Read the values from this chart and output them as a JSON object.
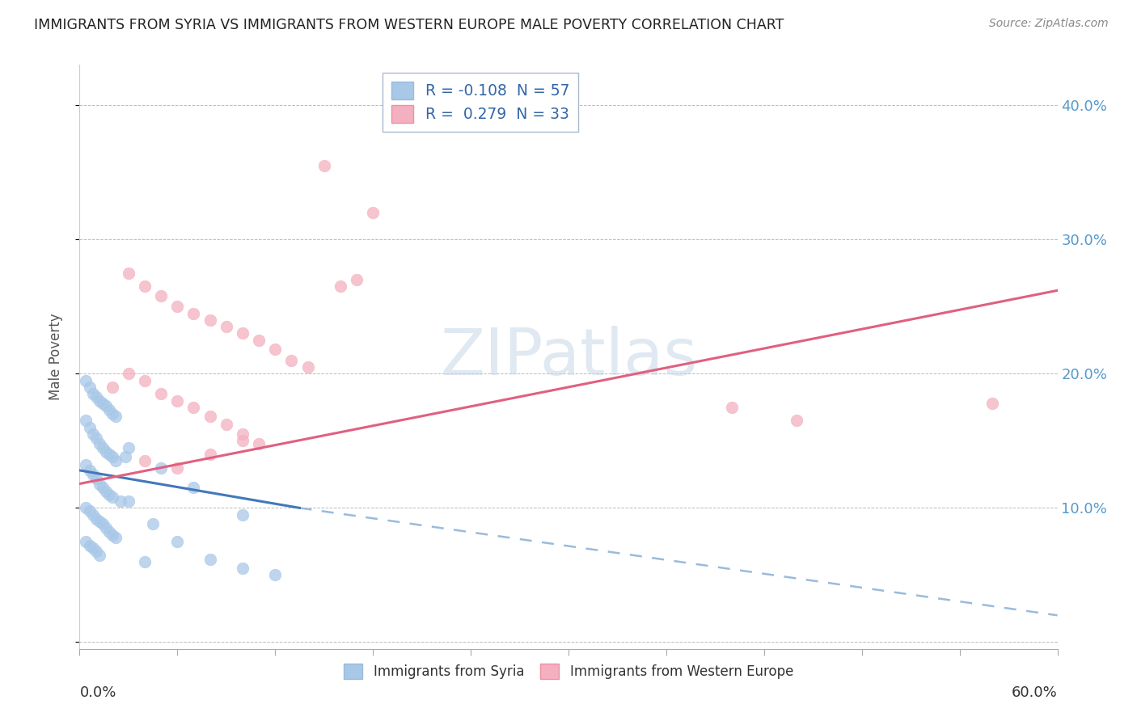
{
  "title": "IMMIGRANTS FROM SYRIA VS IMMIGRANTS FROM WESTERN EUROPE MALE POVERTY CORRELATION CHART",
  "source": "Source: ZipAtlas.com",
  "ylabel": "Male Poverty",
  "xlim": [
    0.0,
    0.6
  ],
  "ylim": [
    -0.005,
    0.43
  ],
  "ytick_values": [
    0.0,
    0.1,
    0.2,
    0.3,
    0.4
  ],
  "ytick_labels_right": [
    "",
    "10.0%",
    "20.0%",
    "30.0%",
    "40.0%"
  ],
  "xtick_label_left": "0.0%",
  "xtick_label_right": "60.0%",
  "legend1_R": "R = -0.108",
  "legend1_N": "N = 57",
  "legend2_R": "R =  0.279",
  "legend2_N": "N = 33",
  "color_syria": "#a8c8e8",
  "color_we": "#f4b0c0",
  "trendline_syria_solid_color": "#4477bb",
  "trendline_syria_dash_color": "#99bbdd",
  "trendline_we_color": "#e06080",
  "watermark_color": "#c8d8e8",
  "syria_x": [
    0.004,
    0.006,
    0.008,
    0.01,
    0.012,
    0.014,
    0.016,
    0.018,
    0.02,
    0.022,
    0.004,
    0.006,
    0.008,
    0.01,
    0.012,
    0.014,
    0.016,
    0.018,
    0.02,
    0.022,
    0.004,
    0.006,
    0.008,
    0.01,
    0.012,
    0.014,
    0.016,
    0.018,
    0.02,
    0.025,
    0.004,
    0.006,
    0.008,
    0.01,
    0.012,
    0.014,
    0.016,
    0.018,
    0.02,
    0.022,
    0.004,
    0.006,
    0.008,
    0.01,
    0.012,
    0.03,
    0.045,
    0.06,
    0.08,
    0.1,
    0.03,
    0.05,
    0.07,
    0.1,
    0.12,
    0.028,
    0.04
  ],
  "syria_y": [
    0.195,
    0.19,
    0.185,
    0.183,
    0.18,
    0.178,
    0.176,
    0.173,
    0.17,
    0.168,
    0.165,
    0.16,
    0.155,
    0.152,
    0.148,
    0.145,
    0.142,
    0.14,
    0.138,
    0.135,
    0.132,
    0.128,
    0.125,
    0.122,
    0.118,
    0.115,
    0.112,
    0.11,
    0.108,
    0.105,
    0.1,
    0.098,
    0.095,
    0.092,
    0.09,
    0.088,
    0.085,
    0.082,
    0.08,
    0.078,
    0.075,
    0.072,
    0.07,
    0.068,
    0.065,
    0.105,
    0.088,
    0.075,
    0.062,
    0.055,
    0.145,
    0.13,
    0.115,
    0.095,
    0.05,
    0.138,
    0.06
  ],
  "we_x": [
    0.03,
    0.04,
    0.05,
    0.06,
    0.07,
    0.08,
    0.09,
    0.1,
    0.11,
    0.12,
    0.13,
    0.14,
    0.15,
    0.16,
    0.17,
    0.18,
    0.02,
    0.03,
    0.04,
    0.05,
    0.06,
    0.07,
    0.08,
    0.09,
    0.1,
    0.11,
    0.04,
    0.06,
    0.08,
    0.1,
    0.4,
    0.44,
    0.56
  ],
  "we_y": [
    0.275,
    0.265,
    0.258,
    0.25,
    0.245,
    0.24,
    0.235,
    0.23,
    0.225,
    0.218,
    0.21,
    0.205,
    0.355,
    0.265,
    0.27,
    0.32,
    0.19,
    0.2,
    0.195,
    0.185,
    0.18,
    0.175,
    0.168,
    0.162,
    0.155,
    0.148,
    0.135,
    0.13,
    0.14,
    0.15,
    0.175,
    0.165,
    0.178
  ],
  "trendline_we_x0": 0.0,
  "trendline_we_y0": 0.118,
  "trendline_we_x1": 0.6,
  "trendline_we_y1": 0.262,
  "trendline_syria_solid_x0": 0.0,
  "trendline_syria_solid_y0": 0.128,
  "trendline_syria_solid_x1": 0.135,
  "trendline_syria_solid_y1": 0.1,
  "trendline_syria_dash_x0": 0.135,
  "trendline_syria_dash_y0": 0.1,
  "trendline_syria_dash_x1": 0.6,
  "trendline_syria_dash_y1": 0.02
}
